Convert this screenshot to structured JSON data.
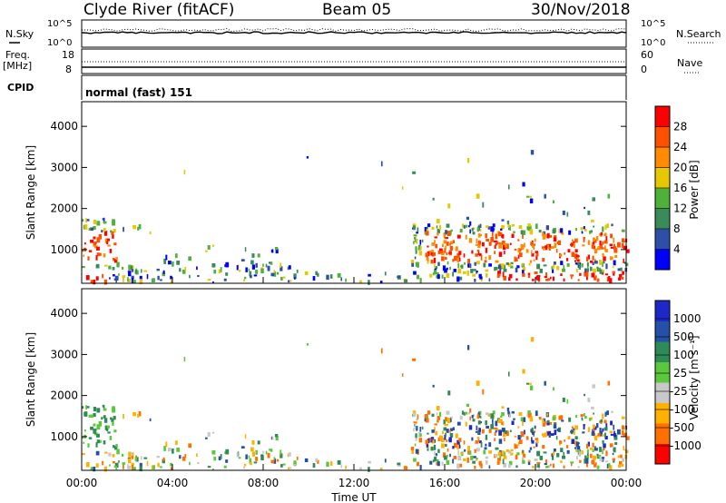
{
  "header": {
    "station": "Clyde River (fitACF)",
    "beam": "Beam 05",
    "date": "30/Nov/2018"
  },
  "strip_panels": {
    "nsky_label": "N.Sky",
    "nsearch_label": "N.Search",
    "nsky_ticks": [
      "10^5",
      "10^0"
    ],
    "nsearch_ticks": [
      "10^5",
      "10^0"
    ],
    "freq_label": "Freq.",
    "freq_unit": "[MHz]",
    "freq_ticks": [
      "18",
      "8"
    ],
    "nave_label": "Nave",
    "nave_ticks": [
      "60",
      "0"
    ],
    "cpid_label": "CPID",
    "cpid_value": "normal (fast) 151"
  },
  "colors": {
    "power_scale": [
      "#0000ff",
      "#2d4fa8",
      "#3a8a5a",
      "#4fb03a",
      "#e6c800",
      "#ff8c00",
      "#ff5000",
      "#ff0000"
    ],
    "velocity_scale": [
      "#ff0000",
      "#ff7000",
      "#ffb000",
      "#c8c8c8",
      "#5ac83a",
      "#2e8b57",
      "#2550a8",
      "#1e28c8"
    ]
  },
  "chart_data": [
    {
      "type": "heatmap",
      "name": "power",
      "ylabel": "Slant Range [km]",
      "yticks": [
        "4000",
        "3000",
        "2000",
        "1000"
      ],
      "ylim": [
        180,
        4600
      ],
      "xlim": [
        "00:00",
        "24:00"
      ],
      "colorbar_label": "Power [dB]",
      "colorbar_ticks": [
        "28",
        "24",
        "20",
        "16",
        "12",
        "8",
        "4"
      ],
      "colorbar_range": [
        0,
        32
      ]
    },
    {
      "type": "heatmap",
      "name": "velocity",
      "ylabel": "Slant Range [km]",
      "yticks": [
        "4000",
        "3000",
        "2000",
        "1000"
      ],
      "ylim": [
        180,
        4600
      ],
      "xlim": [
        "00:00",
        "24:00"
      ],
      "xticks": [
        "00:00",
        "04:00",
        "08:00",
        "12:00",
        "16:00",
        "20:00",
        "00:00"
      ],
      "xlabel": "Time UT",
      "colorbar_label": "Velocity [m s⁻¹]",
      "colorbar_ticks": [
        "1000",
        "500",
        "100",
        "25",
        "-25",
        "-100",
        "-500",
        "-1000"
      ]
    }
  ]
}
